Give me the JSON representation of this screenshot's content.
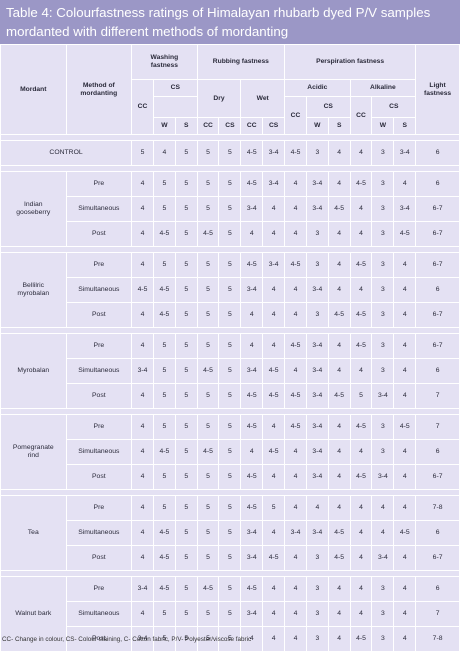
{
  "table": {
    "caption": "Table 4: Colourfastness ratings of Himalayan rhubarb dyed P/V samples\nmordanted with different methods of mordanting",
    "headers": {
      "mordant": "Mordant",
      "method": "Method of\nmordanting",
      "washing": "Washing\nfastness",
      "rubbing": "Rubbing fastness",
      "perspiration": "Perspiration fastness",
      "light": "Light\nfastness",
      "dry": "Dry",
      "wet": "Wet",
      "acidic": "Acidic",
      "alkaline": "Alkaline",
      "cc": "CC",
      "cs": "CS",
      "w": "W",
      "s": "S"
    },
    "control": {
      "label": "CONTROL",
      "values": [
        "5",
        "4",
        "5",
        "5",
        "5",
        "4-5",
        "3-4",
        "4-5",
        "3",
        "4",
        "4",
        "3",
        "3-4",
        "6"
      ]
    },
    "groups": [
      {
        "mordant": "Indian\ngooseberry",
        "rows": [
          {
            "method": "Pre",
            "values": [
              "4",
              "5",
              "5",
              "5",
              "5",
              "4-5",
              "3-4",
              "4",
              "3-4",
              "4",
              "4-5",
              "3",
              "4",
              "6"
            ]
          },
          {
            "method": "Simultaneous",
            "values": [
              "4",
              "5",
              "5",
              "5",
              "5",
              "3-4",
              "4",
              "4",
              "3-4",
              "4-5",
              "4",
              "3",
              "3-4",
              "6-7"
            ]
          },
          {
            "method": "Post",
            "values": [
              "4",
              "4-5",
              "5",
              "4-5",
              "5",
              "4",
              "4",
              "4",
              "3",
              "4",
              "4",
              "3",
              "4-5",
              "6-7"
            ]
          }
        ]
      },
      {
        "mordant": "Bellilric\nmyrobalan",
        "rows": [
          {
            "method": "Pre",
            "values": [
              "4",
              "5",
              "5",
              "5",
              "5",
              "4-5",
              "3-4",
              "4-5",
              "3",
              "4",
              "4-5",
              "3",
              "4",
              "6-7"
            ]
          },
          {
            "method": "Simultaneous",
            "values": [
              "4-5",
              "4-5",
              "5",
              "5",
              "5",
              "3-4",
              "4",
              "4",
              "3-4",
              "4",
              "4",
              "3",
              "4",
              "6"
            ]
          },
          {
            "method": "Post",
            "values": [
              "4",
              "4-5",
              "5",
              "5",
              "5",
              "4",
              "4",
              "4",
              "3",
              "4-5",
              "4-5",
              "3",
              "4",
              "6-7"
            ]
          }
        ]
      },
      {
        "mordant": "Myrobalan",
        "rows": [
          {
            "method": "Pre",
            "values": [
              "4",
              "5",
              "5",
              "5",
              "5",
              "4",
              "4",
              "4-5",
              "3-4",
              "4",
              "4-5",
              "3",
              "4",
              "6-7"
            ]
          },
          {
            "method": "Simultaneous",
            "values": [
              "3-4",
              "5",
              "5",
              "4-5",
              "5",
              "3-4",
              "4-5",
              "4",
              "3-4",
              "4",
              "4",
              "3",
              "4",
              "6"
            ]
          },
          {
            "method": "Post",
            "values": [
              "4",
              "5",
              "5",
              "5",
              "5",
              "4-5",
              "4-5",
              "4-5",
              "3-4",
              "4-5",
              "5",
              "3-4",
              "4",
              "7"
            ]
          }
        ]
      },
      {
        "mordant": "Pomegranate\nrind",
        "rows": [
          {
            "method": "Pre",
            "values": [
              "4",
              "5",
              "5",
              "5",
              "5",
              "4-5",
              "4",
              "4-5",
              "3-4",
              "4",
              "4-5",
              "3",
              "4-5",
              "7"
            ]
          },
          {
            "method": "Simultaneous",
            "values": [
              "4",
              "4-5",
              "5",
              "4-5",
              "5",
              "4",
              "4-5",
              "4",
              "3-4",
              "4",
              "4",
              "3",
              "4",
              "6"
            ]
          },
          {
            "method": "Post",
            "values": [
              "4",
              "5",
              "5",
              "5",
              "5",
              "4-5",
              "4",
              "4",
              "3-4",
              "4",
              "4-5",
              "3-4",
              "4",
              "6-7"
            ]
          }
        ]
      },
      {
        "mordant": "Tea",
        "rows": [
          {
            "method": "Pre",
            "values": [
              "4",
              "5",
              "5",
              "5",
              "5",
              "4-5",
              "5",
              "4",
              "4",
              "4",
              "4",
              "4",
              "4",
              "7-8"
            ]
          },
          {
            "method": "Simultaneous",
            "values": [
              "4",
              "4-5",
              "5",
              "5",
              "5",
              "3-4",
              "4",
              "3-4",
              "3-4",
              "4-5",
              "4",
              "4",
              "4-5",
              "6"
            ]
          },
          {
            "method": "Post",
            "values": [
              "4",
              "4-5",
              "5",
              "5",
              "5",
              "3-4",
              "4-5",
              "4",
              "3",
              "4-5",
              "4",
              "3-4",
              "4",
              "6-7"
            ]
          }
        ]
      },
      {
        "mordant": "Walnut bark",
        "rows": [
          {
            "method": "Pre",
            "values": [
              "3-4",
              "4-5",
              "5",
              "4-5",
              "5",
              "4-5",
              "4",
              "4",
              "3",
              "4",
              "4",
              "3",
              "4",
              "6"
            ]
          },
          {
            "method": "Simultaneous",
            "values": [
              "4",
              "5",
              "5",
              "5",
              "5",
              "3-4",
              "4",
              "4",
              "3",
              "4",
              "4",
              "3",
              "4",
              "7"
            ]
          },
          {
            "method": "Post",
            "values": [
              "3-4",
              "5",
              "5",
              "5",
              "5",
              "4",
              "4",
              "4",
              "3",
              "4",
              "4-5",
              "3",
              "4",
              "7-8"
            ]
          }
        ]
      }
    ],
    "footnote": "CC- Change in colour, CS- Colour staining, C- Cotton fabric, P/V- Polyester/viscose fabric"
  }
}
